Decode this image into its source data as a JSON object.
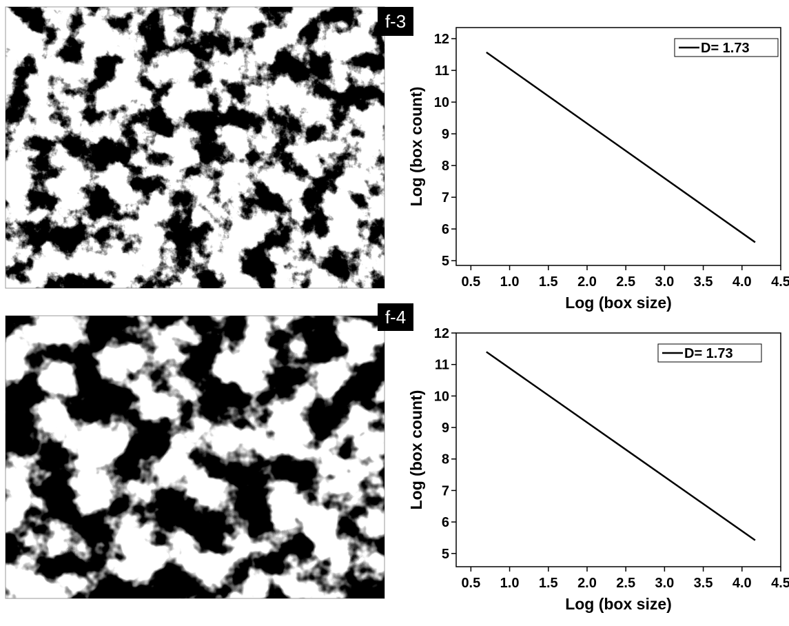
{
  "images": [
    {
      "label": "f-3"
    },
    {
      "label": "f-4"
    }
  ],
  "chart_data": [
    {
      "type": "line",
      "xlabel": "Log (box size)",
      "ylabel": "Log (box count)",
      "series": [
        {
          "name": "D= 1.73",
          "color": "#000000",
          "x": [
            0.7,
            4.17
          ],
          "values": [
            11.57,
            5.58
          ]
        }
      ],
      "xlim": [
        0.31,
        4.5
      ],
      "xticks": [
        0.5,
        1.0,
        1.5,
        2.0,
        2.5,
        3.0,
        3.5,
        4.0,
        4.5
      ],
      "ylim": [
        4.85,
        12.35
      ],
      "yticks": [
        5,
        6,
        7,
        8,
        9,
        10,
        11,
        12
      ],
      "legend": "upper right"
    },
    {
      "type": "line",
      "xlabel": "Log (box size)",
      "ylabel": "Log (box count)",
      "series": [
        {
          "name": "D= 1.73",
          "color": "#000000",
          "x": [
            0.7,
            4.17
          ],
          "values": [
            11.4,
            5.42
          ]
        }
      ],
      "xlim": [
        0.31,
        4.5
      ],
      "xticks": [
        0.5,
        1.0,
        1.5,
        2.0,
        2.5,
        3.0,
        3.5,
        4.0,
        4.5
      ],
      "ylim": [
        4.58,
        12
      ],
      "yticks": [
        5,
        6,
        7,
        8,
        9,
        10,
        11,
        12
      ],
      "legend": "upper right"
    }
  ]
}
